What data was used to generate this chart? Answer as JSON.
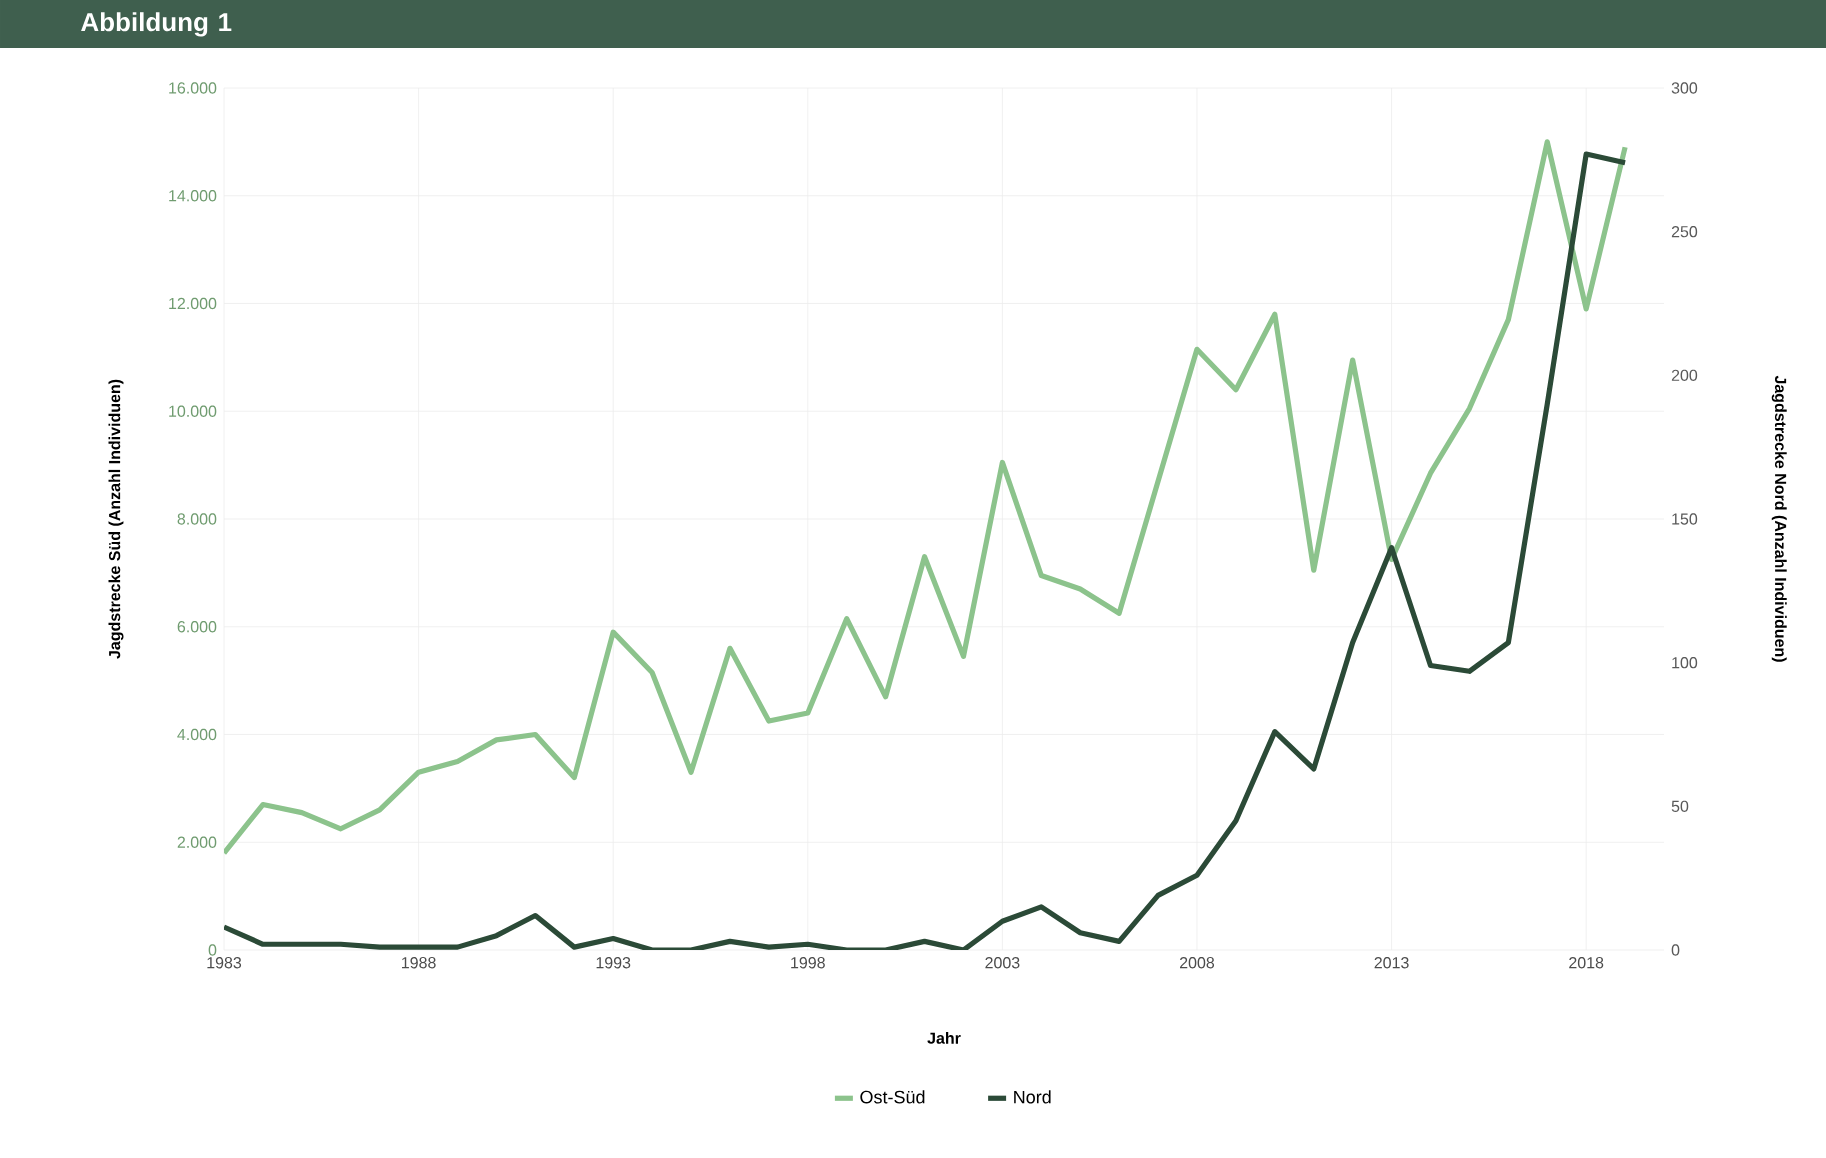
{
  "chart_data": {
    "type": "line",
    "title": "Abbildung 1",
    "xlabel": "Jahr",
    "ylabel": "Jagdstrecke Süd (Anzahl Individuen)",
    "y2label": "Jagdstrecke Nord (Anzahl Individuen)",
    "x": [
      1983,
      1984,
      1985,
      1986,
      1987,
      1988,
      1989,
      1990,
      1991,
      1992,
      1993,
      1994,
      1995,
      1996,
      1997,
      1998,
      1999,
      2000,
      2001,
      2002,
      2003,
      2004,
      2005,
      2006,
      2007,
      2008,
      2009,
      2010,
      2011,
      2012,
      2013,
      2014,
      2015,
      2016,
      2017,
      2018,
      2019
    ],
    "series": [
      {
        "name": "Ost-Süd",
        "color": "#8cc38c",
        "values": [
          1800,
          2700,
          2550,
          2250,
          2600,
          3300,
          3500,
          3900,
          4000,
          3200,
          5900,
          5150,
          3300,
          5600,
          4250,
          4400,
          6150,
          4700,
          7300,
          5450,
          9050,
          6950,
          6700,
          6250,
          8700,
          11150,
          10400,
          11800,
          7050,
          10950,
          7250,
          8850,
          10050,
          11700,
          15000,
          11900,
          14900
        ]
      },
      {
        "name": "Nord",
        "color": "#2b4a37",
        "axis": "y2",
        "values": [
          8,
          2,
          2,
          2,
          1,
          1,
          1,
          5,
          12,
          1,
          4,
          0,
          0,
          3,
          1,
          2,
          0,
          0,
          3,
          0,
          10,
          15,
          6,
          3,
          19,
          26,
          45,
          76,
          63,
          107,
          140,
          99,
          97,
          107,
          190,
          277,
          274
        ]
      }
    ],
    "xlim": [
      1983,
      2020
    ],
    "xticks": [
      1983,
      1988,
      1993,
      1998,
      2003,
      2008,
      2013,
      2018
    ],
    "ylim": [
      0,
      16000
    ],
    "yticks": [
      {
        "value": 0,
        "label": "0"
      },
      {
        "value": 2000,
        "label": "2.000"
      },
      {
        "value": 4000,
        "label": "4.000"
      },
      {
        "value": 6000,
        "label": "6.000"
      },
      {
        "value": 8000,
        "label": "8.000"
      },
      {
        "value": 10000,
        "label": "10.000"
      },
      {
        "value": 12000,
        "label": "12.000"
      },
      {
        "value": 14000,
        "label": "14.000"
      },
      {
        "value": 16000,
        "label": "16.000"
      }
    ],
    "y2lim": [
      0,
      300
    ],
    "y2ticks": [
      0,
      50,
      100,
      150,
      200,
      250,
      300
    ],
    "grid": true,
    "legend": "bottom",
    "marker": "none",
    "line_style": "solid"
  }
}
